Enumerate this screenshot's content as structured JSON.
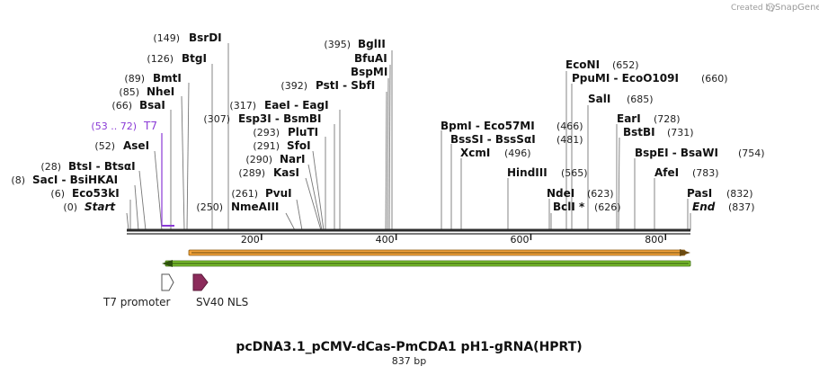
{
  "credit": {
    "prefix": "Created by",
    "brand": "SnapGene"
  },
  "title": "pcDNA3.1_pCMV-dCas-PmCDA1 pH1-gRNA(HPRT)",
  "length_label": "837 bp",
  "sequence_length": 837,
  "axis_ticks": [
    200,
    400,
    600,
    800
  ],
  "colors": {
    "backbone": "#2b2b2b",
    "orf_orange": "#f2a23a",
    "orf_green": "#7bbf2e",
    "t7_promoter": "#ffffff",
    "sv40_nls": "#8c2b5b",
    "t7_site": "#8a3ad6"
  },
  "sites": [
    {
      "num": "(149)",
      "name": "BsrDI"
    },
    {
      "num": "(126)",
      "name": "BtgI"
    },
    {
      "num": "(89)",
      "name": "BmtI"
    },
    {
      "num": "(85)",
      "name": "NheI"
    },
    {
      "num": "(66)",
      "name": "BsaI"
    },
    {
      "num": "(53 .. 72)",
      "name": "T7"
    },
    {
      "num": "(52)",
      "name": "AseI"
    },
    {
      "num": "(28)",
      "name": "BtsI - BtsαI"
    },
    {
      "num": "(8)",
      "name": "SacI - BsiHKAI"
    },
    {
      "num": "(6)",
      "name": "Eco53kI"
    },
    {
      "num": "(0)",
      "name": "Start"
    },
    {
      "num": "(395)",
      "name": "BglII"
    },
    {
      "num": "",
      "name": "BfuAI"
    },
    {
      "num": "",
      "name": "BspMI"
    },
    {
      "num": "(392)",
      "name": "PstI - SbfI"
    },
    {
      "num": "(317)",
      "name": "EaeI - EagI"
    },
    {
      "num": "(307)",
      "name": "Esp3I - BsmBI"
    },
    {
      "num": "(293)",
      "name": "PluTI"
    },
    {
      "num": "(291)",
      "name": "SfoI"
    },
    {
      "num": "(290)",
      "name": "NarI"
    },
    {
      "num": "(289)",
      "name": "KasI"
    },
    {
      "num": "(261)",
      "name": "PvuI"
    },
    {
      "num": "(250)",
      "name": "NmeAIII"
    },
    {
      "num": "(466)",
      "name": "BpmI - Eco57MI"
    },
    {
      "num": "(481)",
      "name": "BssSI - BssSαI"
    },
    {
      "num": "(496)",
      "name": "XcmI"
    },
    {
      "num": "(565)",
      "name": "HindIII"
    },
    {
      "num": "(652)",
      "name": "EcoNI"
    },
    {
      "num": "(660)",
      "name": "PpuMI - EcoO109I"
    },
    {
      "num": "(685)",
      "name": "SalI"
    },
    {
      "num": "(728)",
      "name": "EarI"
    },
    {
      "num": "(731)",
      "name": "BstBI"
    },
    {
      "num": "(754)",
      "name": "BspEI - BsaWI"
    },
    {
      "num": "(783)",
      "name": "AfeI"
    },
    {
      "num": "(623)",
      "name": "NdeI"
    },
    {
      "num": "(626)",
      "name": "BclI *"
    },
    {
      "num": "(832)",
      "name": "PasI"
    },
    {
      "num": "(837)",
      "name": "End"
    }
  ],
  "features": [
    {
      "name": "T7 promoter"
    },
    {
      "name": "SV40 NLS"
    }
  ]
}
